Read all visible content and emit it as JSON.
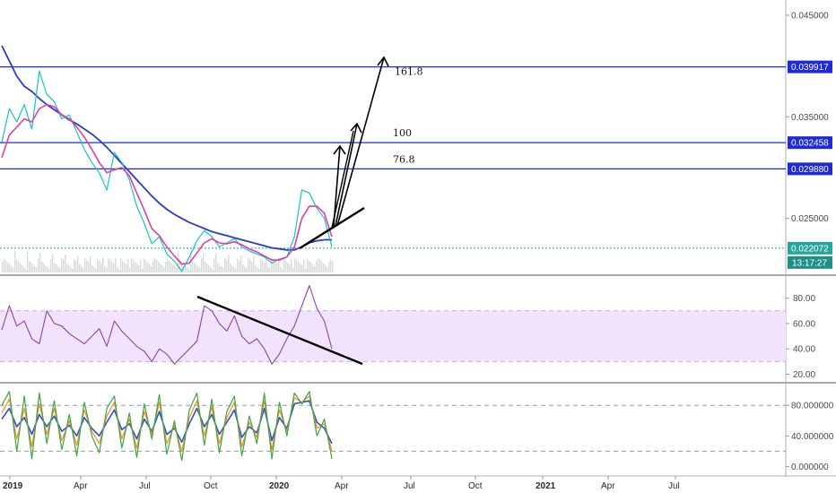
{
  "chart_data": [
    {
      "type": "line",
      "panel": "price",
      "x_ticks": [
        "2019",
        "Apr",
        "Jul",
        "Oct",
        "2020",
        "Apr",
        "Jul",
        "Oct",
        "2021",
        "Apr",
        "Jul"
      ],
      "y_ticks": [
        "0.045000",
        "0.035000",
        "0.025000"
      ],
      "ylim": [
        0.0195,
        0.0465
      ],
      "horizontal_levels": [
        {
          "value": 0.039917,
          "label": "0.039917"
        },
        {
          "value": 0.032458,
          "label": "0.032458"
        },
        {
          "value": 0.02988,
          "label": "0.029880"
        }
      ],
      "last_price": {
        "value": 0.022072,
        "label": "0.022072",
        "countdown": "13:17:27"
      },
      "fib_annotations": [
        {
          "label": "76.8",
          "value": 0.02988
        },
        {
          "label": "100",
          "value": 0.032458
        },
        {
          "label": "161.8",
          "value": 0.039917
        }
      ],
      "series": [
        {
          "role": "price",
          "color": "#17c3c3",
          "y": [
            0.0325,
            0.0358,
            0.0345,
            0.0362,
            0.0338,
            0.0395,
            0.0372,
            0.0365,
            0.0348,
            0.0352,
            0.0335,
            0.0318,
            0.0305,
            0.0295,
            0.0278,
            0.0315,
            0.0305,
            0.0288,
            0.0262,
            0.0245,
            0.0225,
            0.0232,
            0.0215,
            0.0208,
            0.0198,
            0.0212,
            0.0228,
            0.0238,
            0.0232,
            0.0222,
            0.0226,
            0.023,
            0.0222,
            0.0218,
            0.0215,
            0.0212,
            0.0206,
            0.021,
            0.0212,
            0.0232,
            0.0278,
            0.0275,
            0.026,
            0.025,
            0.0222
          ]
        },
        {
          "role": "fast-ma",
          "color": "#e03ea8",
          "y": [
            0.031,
            0.0332,
            0.034,
            0.0348,
            0.0345,
            0.0358,
            0.0362,
            0.036,
            0.0352,
            0.0348,
            0.034,
            0.033,
            0.0318,
            0.0305,
            0.0295,
            0.0298,
            0.03,
            0.0292,
            0.0275,
            0.0258,
            0.024,
            0.0233,
            0.0222,
            0.0213,
            0.0205,
            0.0206,
            0.0216,
            0.0226,
            0.023,
            0.0226,
            0.0225,
            0.0227,
            0.0224,
            0.022,
            0.0217,
            0.0213,
            0.0209,
            0.0209,
            0.0212,
            0.0222,
            0.025,
            0.0262,
            0.0262,
            0.0255,
            0.0232
          ]
        },
        {
          "role": "slow-ma",
          "color": "#2c3bbf",
          "y": [
            0.042,
            0.0405,
            0.039,
            0.038,
            0.0375,
            0.0368,
            0.0362,
            0.0357,
            0.0352,
            0.0347,
            0.0343,
            0.0338,
            0.0333,
            0.0327,
            0.032,
            0.0312,
            0.0304,
            0.0296,
            0.0288,
            0.028,
            0.0272,
            0.0265,
            0.0259,
            0.0254,
            0.025,
            0.0246,
            0.0243,
            0.024,
            0.0237,
            0.0235,
            0.0233,
            0.0231,
            0.0229,
            0.0227,
            0.0225,
            0.0223,
            0.0221,
            0.022,
            0.0219,
            0.0219,
            0.0222,
            0.0226,
            0.0228,
            0.0229,
            0.0229
          ]
        }
      ]
    },
    {
      "type": "line",
      "panel": "rsi",
      "y_ticks": [
        "80.00",
        "60.00",
        "40.00",
        "20.00"
      ],
      "ylim": [
        14,
        96
      ],
      "band": [
        30,
        70
      ],
      "series": [
        {
          "role": "rsi",
          "color": "#8e3fb8",
          "y": [
            55,
            74,
            58,
            62,
            48,
            44,
            70,
            60,
            58,
            52,
            48,
            44,
            50,
            56,
            42,
            62,
            54,
            48,
            42,
            38,
            30,
            40,
            36,
            28,
            34,
            40,
            46,
            74,
            70,
            60,
            54,
            66,
            50,
            44,
            48,
            40,
            28,
            36,
            48,
            58,
            74,
            90,
            72,
            62,
            40
          ]
        }
      ]
    },
    {
      "type": "line",
      "panel": "stochastic",
      "y_ticks": [
        "80.000000",
        "40.000000",
        "0.000000"
      ],
      "ylim": [
        -10,
        106
      ],
      "dashed_levels": [
        80,
        20
      ],
      "series": [
        {
          "role": "k",
          "color": "#3ea63e",
          "y": [
            80,
            98,
            20,
            92,
            10,
            96,
            30,
            86,
            22,
            68,
            14,
            84,
            40,
            18,
            76,
            92,
            24,
            70,
            12,
            82,
            36,
            94,
            16,
            60,
            8,
            74,
            96,
            28,
            88,
            18,
            72,
            92,
            14,
            66,
            30,
            96,
            10,
            84,
            40,
            96,
            82,
            98,
            40,
            62,
            10
          ]
        },
        {
          "role": "d",
          "color": "#f28c28",
          "y": [
            70,
            88,
            36,
            76,
            26,
            82,
            42,
            76,
            34,
            60,
            28,
            74,
            46,
            30,
            66,
            84,
            36,
            62,
            24,
            72,
            42,
            84,
            30,
            54,
            20,
            64,
            86,
            40,
            78,
            30,
            64,
            84,
            26,
            58,
            38,
            86,
            22,
            74,
            46,
            90,
            84,
            92,
            50,
            56,
            20
          ]
        },
        {
          "role": "signal",
          "color": "#2e4fd0",
          "y": [
            62,
            76,
            52,
            64,
            42,
            68,
            52,
            66,
            46,
            54,
            40,
            64,
            50,
            40,
            58,
            74,
            48,
            56,
            36,
            62,
            46,
            72,
            42,
            50,
            32,
            56,
            76,
            52,
            68,
            42,
            58,
            74,
            38,
            52,
            44,
            76,
            34,
            64,
            50,
            82,
            84,
            86,
            58,
            50,
            30
          ]
        }
      ]
    }
  ]
}
